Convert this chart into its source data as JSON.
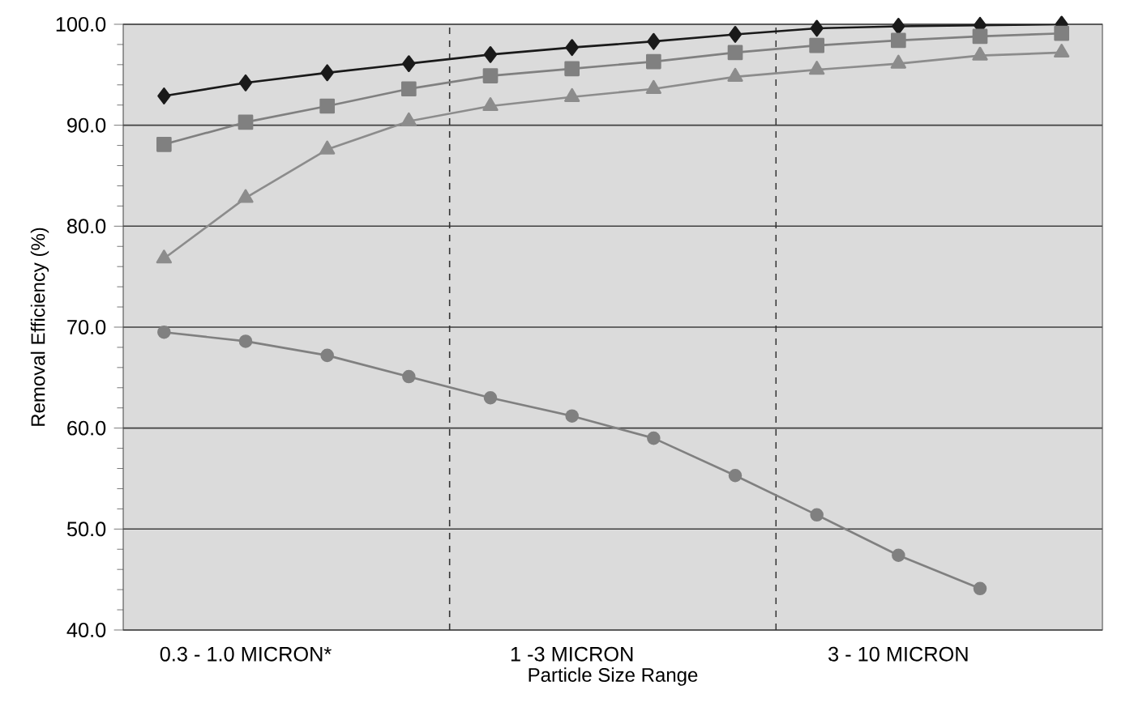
{
  "chart_data": {
    "type": "line",
    "xlabel": "Particle Size Range",
    "ylabel": "Removal Efficiency (%)",
    "categories": [
      null,
      "0.3 - 1.0 MICRON*",
      null,
      null,
      null,
      "1 -3 MICRON",
      null,
      null,
      null,
      "3 - 10 MICRON",
      null,
      null
    ],
    "ylim": [
      40,
      100
    ],
    "yticks": [
      {
        "value": 40,
        "label": "40.0"
      },
      {
        "value": 50,
        "label": "50.0"
      },
      {
        "value": 60,
        "label": "60.0"
      },
      {
        "value": 70,
        "label": "70.0"
      },
      {
        "value": 80,
        "label": "80.0"
      },
      {
        "value": 90,
        "label": "90.0"
      },
      {
        "value": 100,
        "label": "100.0"
      }
    ],
    "grid": "y",
    "line_style": "solid",
    "series": [
      {
        "color": "#1a1a1a",
        "marker": "diamond",
        "values": [
          92.9,
          94.2,
          95.2,
          96.1,
          97.0,
          97.7,
          98.3,
          99.0,
          99.6,
          99.8,
          99.9,
          100.0
        ]
      },
      {
        "color": "#808080",
        "marker": "square",
        "values": [
          88.1,
          90.3,
          91.9,
          93.6,
          94.9,
          95.6,
          96.3,
          97.2,
          97.9,
          98.4,
          98.8,
          99.1
        ]
      },
      {
        "color": "#8c8c8c",
        "marker": "triangle",
        "values": [
          76.8,
          82.8,
          87.6,
          90.4,
          91.9,
          92.8,
          93.6,
          94.8,
          95.5,
          96.1,
          96.9,
          97.2
        ]
      },
      {
        "color": "#808080",
        "marker": "circle",
        "values": [
          69.5,
          68.6,
          67.2,
          65.1,
          63.0,
          61.2,
          59.0,
          55.3,
          51.4,
          47.4,
          44.1,
          null
        ]
      }
    ]
  }
}
